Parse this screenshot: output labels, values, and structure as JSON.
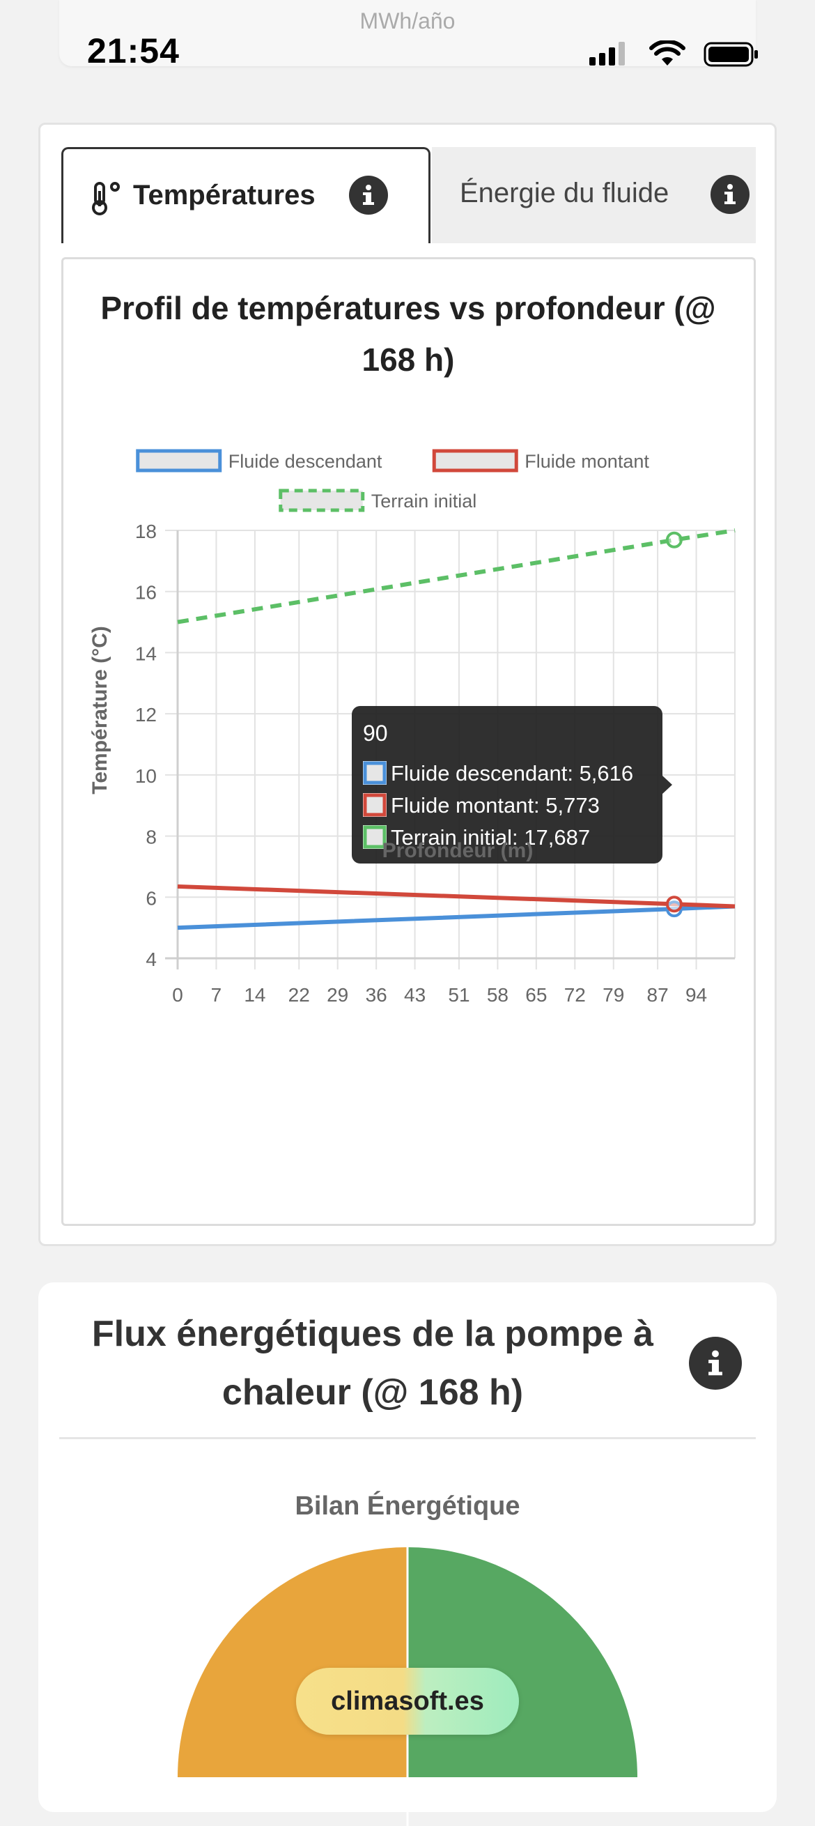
{
  "top_ghost": {
    "units": "MWh/año"
  },
  "status_bar": {
    "time": "21:54"
  },
  "tabs": [
    {
      "label": "Températures",
      "active": true
    },
    {
      "label": "Énergie du fluide",
      "active": false
    }
  ],
  "chart_data": {
    "type": "line",
    "title_line1": "Profil de températures vs profondeur (@",
    "title_line2": "168 h)",
    "xlabel": "Profondeur (m)",
    "ylabel": "Température (°C)",
    "xlim": [
      0,
      101
    ],
    "ylim": [
      4,
      18
    ],
    "x_ticks": [
      "0",
      "7",
      "14",
      "22",
      "29",
      "36",
      "43",
      "51",
      "58",
      "65",
      "72",
      "79",
      "87",
      "94"
    ],
    "y_ticks": [
      "4",
      "6",
      "8",
      "10",
      "12",
      "14",
      "16",
      "18"
    ],
    "grid": true,
    "legend_position": "top",
    "series": [
      {
        "name": "Fluide descendant",
        "color": "#4a90d9",
        "dash": false,
        "x": [
          0,
          90,
          101
        ],
        "y": [
          5.0,
          5.616,
          5.7
        ]
      },
      {
        "name": "Fluide montant",
        "color": "#d1483b",
        "dash": false,
        "x": [
          0,
          90,
          101
        ],
        "y": [
          6.35,
          5.773,
          5.7
        ]
      },
      {
        "name": "Terrain initial",
        "color": "#5cbf66",
        "dash": true,
        "x": [
          0,
          90,
          101
        ],
        "y": [
          15.0,
          17.687,
          18.0
        ]
      }
    ],
    "tooltip": {
      "title": "90",
      "x": 90,
      "lines": [
        "Fluide descendant: 5,616",
        "Fluide montant: 5,773",
        "Terrain initial: 17,687"
      ]
    }
  },
  "card2": {
    "title_line1": "Flux énergétiques de la pompe à",
    "title_line2": "chaleur (@ 168 h)",
    "subtitle": "Bilan Énergétique",
    "pie_colors": [
      "#e8a53c",
      "#57a862"
    ]
  },
  "watermark": "climasoft.es"
}
